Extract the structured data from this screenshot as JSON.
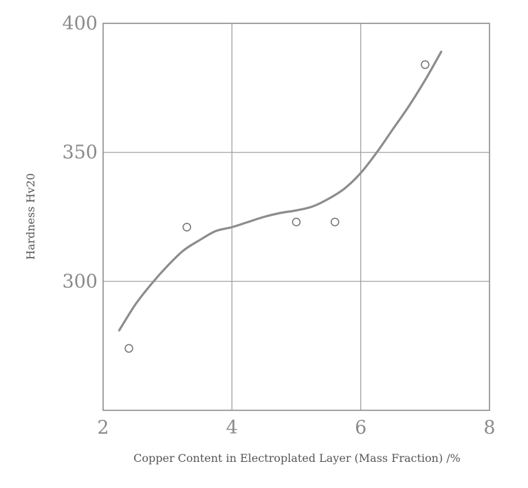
{
  "chart_data": {
    "type": "scatter",
    "title": "",
    "xlabel": "Copper Content in Electroplated Layer (Mass Fraction) /%",
    "ylabel": "Hardness Hv20",
    "xlim": [
      2,
      8
    ],
    "ylim": [
      250,
      400
    ],
    "x_ticks": [
      2,
      4,
      6,
      8
    ],
    "y_ticks": [
      300,
      350,
      400
    ],
    "x_tick_labels": [
      "2",
      "4",
      "6",
      "8"
    ],
    "y_tick_labels": [
      "300",
      "350",
      "400"
    ],
    "grid": true,
    "series": [
      {
        "type": "scatter",
        "marker": "open-circle",
        "x": [
          2.4,
          3.3,
          5.0,
          5.6,
          7.0
        ],
        "y": [
          274,
          321,
          323,
          323,
          384
        ]
      },
      {
        "type": "line",
        "smooth": true,
        "x": [
          2.25,
          2.5,
          2.75,
          3.0,
          3.25,
          3.5,
          3.75,
          4.0,
          4.25,
          4.5,
          4.75,
          5.0,
          5.25,
          5.5,
          5.75,
          6.0,
          6.25,
          6.5,
          6.75,
          7.0,
          7.25
        ],
        "y": [
          281,
          291,
          299,
          306,
          312,
          316,
          319.5,
          321,
          323,
          325,
          326.5,
          327.5,
          329,
          332,
          336,
          342,
          350,
          359,
          368,
          378,
          389
        ]
      }
    ],
    "colors": {
      "curve": "#8c8c8c",
      "grid": "#9a9a9a",
      "marker": "#707070"
    }
  }
}
